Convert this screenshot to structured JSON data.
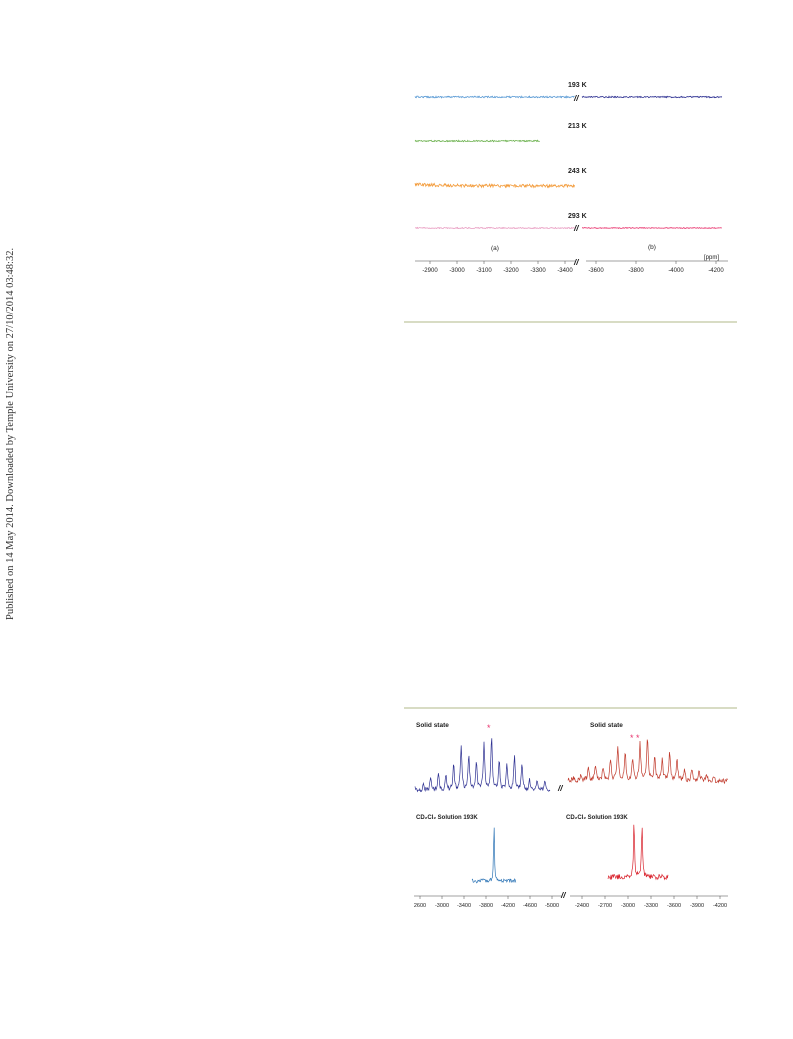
{
  "side_note": "Published on 14 May 2014. Downloaded by Temple University on 27/10/2014 03:48:32.",
  "figure_top": {
    "temperatures": [
      "193 K",
      "213 K",
      "243 K",
      "293 K"
    ],
    "panel_labels": [
      "(a)",
      "(b)"
    ],
    "unit_label": "[ppm]",
    "break_mark": "//",
    "colors": {
      "193K_a": "#5b9bd5",
      "193K_b": "#2e3192",
      "213K": "#6ab04c",
      "243K": "#f39c3c",
      "293K_a": "#e89ac0",
      "293K_b": "#e8336d"
    }
  },
  "figure_bottom": {
    "labels": [
      "Solid state",
      "Solid state",
      "CD₂Cl₂ Solution 193K",
      "CD₂Cl₂ Solution 193K"
    ],
    "asterisks": [
      "*",
      "* *"
    ],
    "break_mark": "//",
    "colors": {
      "solid_left": "#2e3192",
      "solid_right": "#c0392b",
      "sol_left": "#2e75b6",
      "sol_right": "#d9232d"
    }
  },
  "chart_data": [
    {
      "type": "line",
      "xlabel": "[ppm]",
      "axis_a_ticks": [
        "-2900",
        "-3000",
        "-3100",
        "-3200",
        "-3300",
        "-3400"
      ],
      "axis_b_ticks": [
        "-3600",
        "-3800",
        "-4000",
        "-4200"
      ],
      "series": [
        {
          "name": "193 K",
          "a_peaks_ppm": [
            -3050,
            -3160
          ],
          "b_peaks_ppm": [
            -3965
          ]
        },
        {
          "name": "213 K",
          "a_peaks_ppm": [
            -3075,
            -3175
          ]
        },
        {
          "name": "243 K",
          "a_peaks_ppm": [
            -3090
          ]
        },
        {
          "name": "293 K",
          "a_peaks_ppm": [
            -3160
          ],
          "b_peaks_ppm": [
            -3970
          ]
        }
      ]
    },
    {
      "type": "line",
      "axis_left_ticks": [
        "2600",
        "-3000",
        "-3400",
        "-3800",
        "-4200",
        "-4600",
        "-5000"
      ],
      "axis_right_ticks": [
        "-2400",
        "-2700",
        "-3000",
        "-3300",
        "-3600",
        "-3900",
        "-4200"
      ],
      "series": [
        {
          "name": "Solid state",
          "center_ppm": -3850
        },
        {
          "name": "Solid state",
          "center_ppm": -3050
        },
        {
          "name": "CD₂Cl₂ Solution 193K",
          "peak_ppm": -3900
        },
        {
          "name": "CD₂Cl₂ Solution 193K",
          "peaks_ppm": [
            -2990,
            -3090
          ]
        }
      ]
    }
  ]
}
